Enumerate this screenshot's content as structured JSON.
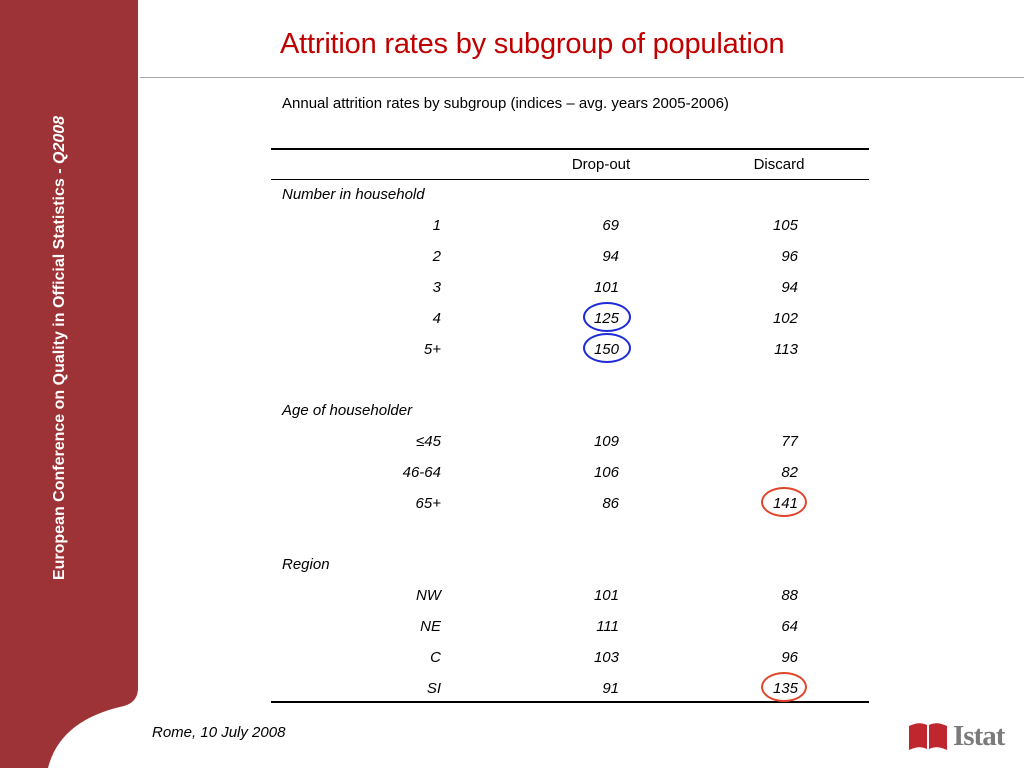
{
  "sidebar": {
    "text": "European Conference on Quality in Official Statistics  - ",
    "year": "Q2008",
    "color": "#9e3337"
  },
  "title": "Attrition rates by subgroup of population",
  "subtitle": "Annual  attrition rates by subgroup (indices – avg. years 2005-2006)",
  "table": {
    "columns": [
      "Drop-out",
      "Discard"
    ],
    "groups": [
      {
        "label": "Number in household",
        "rows": [
          {
            "label": "1",
            "dropout": "69",
            "discard": "105"
          },
          {
            "label": "2",
            "dropout": "94",
            "discard": "96"
          },
          {
            "label": "3",
            "dropout": "101",
            "discard": "94"
          },
          {
            "label": "4",
            "dropout": "125",
            "discard": "102"
          },
          {
            "label": "5+",
            "dropout": "150",
            "discard": "113"
          }
        ]
      },
      {
        "label": "Age of householder",
        "rows": [
          {
            "label": "≤45",
            "dropout": "109",
            "discard": "77"
          },
          {
            "label": "46-64",
            "dropout": "106",
            "discard": "82"
          },
          {
            "label": "65+",
            "dropout": "86",
            "discard": "141"
          }
        ]
      },
      {
        "label": "Region",
        "rows": [
          {
            "label": "NW",
            "dropout": "101",
            "discard": "88"
          },
          {
            "label": "NE",
            "dropout": "111",
            "discard": "64"
          },
          {
            "label": "C",
            "dropout": "103",
            "discard": "96"
          },
          {
            "label": "SI",
            "dropout": "91",
            "discard": "135"
          }
        ]
      }
    ],
    "highlights": [
      {
        "value": "125",
        "color": "#1f2bd6"
      },
      {
        "value": "150",
        "color": "#1f2bd6"
      },
      {
        "value": "141",
        "color": "#e0452a"
      },
      {
        "value": "135",
        "color": "#e0452a"
      }
    ]
  },
  "footer": "Rome, 10 July 2008",
  "logo": {
    "text": "Istat",
    "color": "#c0262e"
  }
}
